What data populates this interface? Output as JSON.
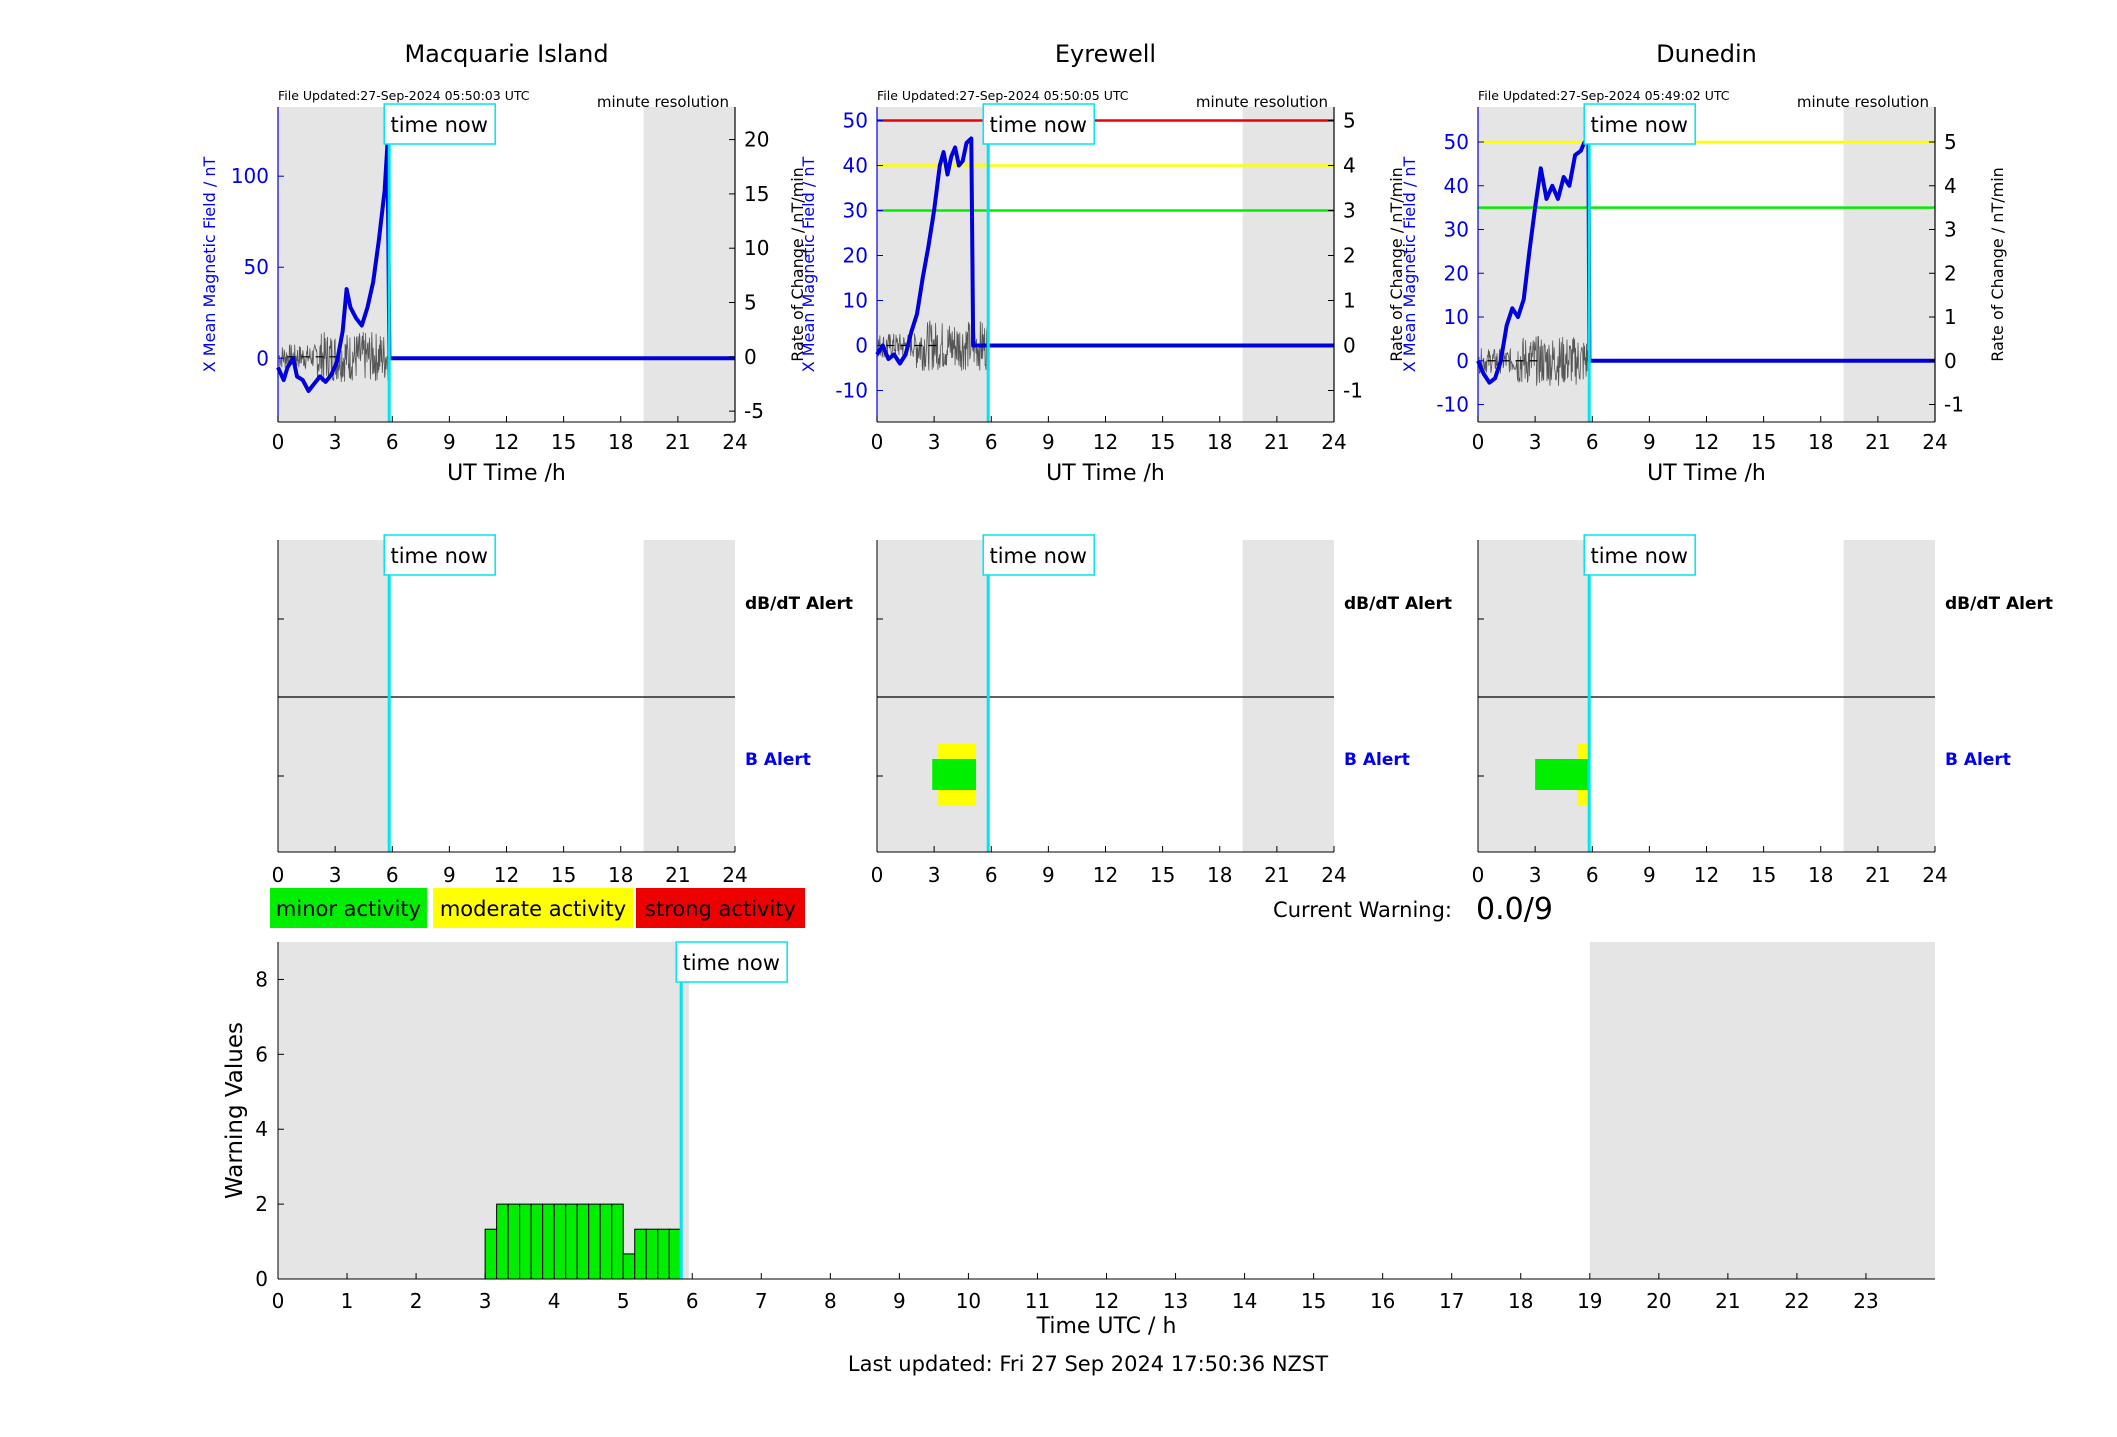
{
  "colors": {
    "shade": "#e5e5e5",
    "b_line": "#0000dd",
    "rate_line": "#555555",
    "time_now": "#00e5ee",
    "red": "#ee0000",
    "yellow": "#ffff00",
    "green": "#00ee00",
    "blue_text": "#0000ee"
  },
  "x_ticks": [
    0,
    3,
    6,
    9,
    12,
    15,
    18,
    21,
    24
  ],
  "time_now_label": "time now",
  "time_now_hour": 5.84,
  "xlabel": "UT Time /h",
  "ylabel_left": "X Mean Magnetic Field / nT",
  "ylabel_right": "Rate of Change / nT/min",
  "resolution_label": "minute resolution",
  "dbdt_label": "dB/dT Alert",
  "balert_label": "B Alert",
  "legend": [
    {
      "label": "minor activity",
      "color": "#00ee00"
    },
    {
      "label": "moderate activity",
      "color": "#ffff00"
    },
    {
      "label": "strong activity",
      "color": "#ee0000"
    }
  ],
  "current_warning_label": "Current Warning:",
  "current_warning_value": "0.0/9",
  "footer": "Last updated: Fri 27 Sep 2024 17:50:36 NZST",
  "stations": [
    {
      "name": "Macquarie Island",
      "file_updated": "File Updated:27-Sep-2024 05:50:03 UTC",
      "ylim": [
        -35,
        138
      ],
      "yticks": [
        0,
        50,
        100
      ],
      "rlim": [
        -6,
        23
      ],
      "rticks": [
        -5,
        0,
        5,
        10,
        15,
        20
      ],
      "thresholds": [],
      "b_series": [
        [
          0,
          -5
        ],
        [
          0.3,
          -12
        ],
        [
          0.5,
          -5
        ],
        [
          0.8,
          0
        ],
        [
          1.0,
          -10
        ],
        [
          1.3,
          -12
        ],
        [
          1.6,
          -18
        ],
        [
          1.9,
          -14
        ],
        [
          2.2,
          -10
        ],
        [
          2.5,
          -13
        ],
        [
          2.8,
          -9
        ],
        [
          3.1,
          -2
        ],
        [
          3.4,
          15
        ],
        [
          3.6,
          38
        ],
        [
          3.8,
          28
        ],
        [
          4.1,
          22
        ],
        [
          4.4,
          18
        ],
        [
          4.7,
          28
        ],
        [
          5.0,
          42
        ],
        [
          5.3,
          65
        ],
        [
          5.6,
          92
        ],
        [
          5.75,
          118
        ],
        [
          5.85,
          0
        ],
        [
          24,
          0
        ]
      ],
      "alerts": []
    },
    {
      "name": "Eyrewell",
      "file_updated": "File Updated:27-Sep-2024 05:50:05 UTC",
      "ylim": [
        -17,
        53
      ],
      "yticks": [
        -10,
        0,
        10,
        20,
        30,
        40,
        50
      ],
      "rlim": [
        -1.7,
        5.3
      ],
      "rticks": [
        -1,
        0,
        1,
        2,
        3,
        4,
        5
      ],
      "thresholds": [
        {
          "value": 50,
          "color": "#ee0000"
        },
        {
          "value": 40,
          "color": "#ffff00"
        },
        {
          "value": 30,
          "color": "#00ee00"
        }
      ],
      "b_series": [
        [
          0,
          -2
        ],
        [
          0.3,
          0
        ],
        [
          0.6,
          -3
        ],
        [
          0.9,
          -2
        ],
        [
          1.2,
          -4
        ],
        [
          1.5,
          -2
        ],
        [
          1.8,
          3
        ],
        [
          2.1,
          7
        ],
        [
          2.4,
          15
        ],
        [
          2.7,
          22
        ],
        [
          3.0,
          30
        ],
        [
          3.3,
          40
        ],
        [
          3.5,
          43
        ],
        [
          3.7,
          38
        ],
        [
          3.9,
          42
        ],
        [
          4.1,
          44
        ],
        [
          4.3,
          40
        ],
        [
          4.5,
          41
        ],
        [
          4.7,
          45
        ],
        [
          4.95,
          46
        ],
        [
          5.05,
          0
        ],
        [
          24,
          0
        ]
      ],
      "alerts": [
        {
          "start": 3.2,
          "end": 5.2,
          "color": "#ffff00",
          "y0": 0.3,
          "y1": 0.7
        },
        {
          "start": 2.9,
          "end": 5.2,
          "color": "#00ee00",
          "y0": 0.4,
          "y1": 0.6
        }
      ]
    },
    {
      "name": "Dunedin",
      "file_updated": "File Updated:27-Sep-2024 05:49:02 UTC",
      "ylim": [
        -14,
        58
      ],
      "yticks": [
        -10,
        0,
        10,
        20,
        30,
        40,
        50
      ],
      "rlim": [
        -1.4,
        5.8
      ],
      "rticks": [
        -1,
        0,
        1,
        2,
        3,
        4,
        5
      ],
      "thresholds": [
        {
          "value": 50,
          "color": "#ffff00"
        },
        {
          "value": 35,
          "color": "#00ee00"
        }
      ],
      "b_series": [
        [
          0,
          0
        ],
        [
          0.3,
          -3
        ],
        [
          0.6,
          -5
        ],
        [
          0.9,
          -4
        ],
        [
          1.2,
          0
        ],
        [
          1.5,
          8
        ],
        [
          1.8,
          12
        ],
        [
          2.1,
          10
        ],
        [
          2.4,
          14
        ],
        [
          2.7,
          25
        ],
        [
          3.0,
          35
        ],
        [
          3.3,
          44
        ],
        [
          3.6,
          37
        ],
        [
          3.9,
          40
        ],
        [
          4.2,
          37
        ],
        [
          4.5,
          42
        ],
        [
          4.8,
          40
        ],
        [
          5.1,
          47
        ],
        [
          5.4,
          48
        ],
        [
          5.6,
          50
        ],
        [
          5.8,
          50
        ],
        [
          5.85,
          0
        ],
        [
          24,
          0
        ]
      ],
      "alerts": [
        {
          "start": 5.2,
          "end": 5.9,
          "color": "#ffff00",
          "y0": 0.3,
          "y1": 0.7
        },
        {
          "start": 3.0,
          "end": 5.9,
          "color": "#00ee00",
          "y0": 0.4,
          "y1": 0.6
        }
      ]
    }
  ],
  "chart_data": {
    "type": "bar",
    "xlabel": "Time UTC / h",
    "ylabel": "Warning Values",
    "xlim": [
      0,
      24
    ],
    "ylim": [
      0,
      9
    ],
    "xticks": [
      0,
      1,
      2,
      3,
      4,
      5,
      6,
      7,
      8,
      9,
      10,
      11,
      12,
      13,
      14,
      15,
      16,
      17,
      18,
      19,
      20,
      21,
      22,
      23
    ],
    "yticks": [
      0,
      2,
      4,
      6,
      8
    ],
    "bar_width": 0.1667,
    "bars": [
      [
        3.0,
        1.33
      ],
      [
        3.1667,
        2
      ],
      [
        3.3333,
        2
      ],
      [
        3.5,
        2
      ],
      [
        3.6667,
        2
      ],
      [
        3.8333,
        2
      ],
      [
        4.0,
        2
      ],
      [
        4.1667,
        2
      ],
      [
        4.3333,
        2
      ],
      [
        4.5,
        2
      ],
      [
        4.6667,
        2
      ],
      [
        4.8333,
        2
      ],
      [
        5.0,
        0.67
      ],
      [
        5.1667,
        1.33
      ],
      [
        5.3333,
        1.33
      ],
      [
        5.5,
        1.33
      ],
      [
        5.6667,
        1.33
      ]
    ],
    "shaded": [
      [
        0,
        5.95
      ],
      [
        19,
        24
      ]
    ]
  }
}
